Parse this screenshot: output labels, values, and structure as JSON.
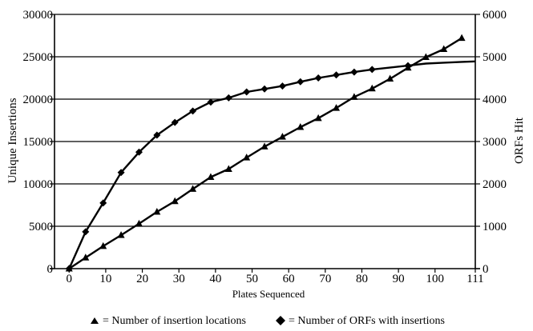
{
  "chart_data": {
    "type": "line",
    "xlabel": "Plates Sequenced",
    "ylabel_left": "Unique Insertions",
    "ylabel_right": "ORFs Hit",
    "xlim": [
      -4,
      111
    ],
    "ylim_left": [
      0,
      30000
    ],
    "ylim_right": [
      0,
      6000
    ],
    "x_ticks": [
      0,
      10,
      20,
      30,
      40,
      50,
      60,
      70,
      80,
      90,
      100,
      111
    ],
    "x_tick_labels": [
      "0",
      "10",
      "20",
      "30",
      "40",
      "50",
      "60",
      "70",
      "80",
      "90",
      "100",
      "111"
    ],
    "y_left_ticks": [
      0,
      5000,
      10000,
      15000,
      20000,
      25000,
      30000
    ],
    "y_left_tick_labels": [
      "0",
      "5000",
      "10000",
      "15000",
      "20000",
      "25000",
      "30000"
    ],
    "y_right_ticks": [
      0,
      1000,
      2000,
      3000,
      4000,
      5000,
      6000
    ],
    "y_right_tick_labels": [
      "0",
      "1000",
      "2000",
      "3000",
      "4000",
      "5000",
      "6000"
    ],
    "grid": "horizontal",
    "legend_position": "bottom",
    "series": [
      {
        "name": "= Number of insertion locations",
        "axis": "left",
        "marker": "triangle",
        "x": [
          0,
          4.5,
          9.3,
          14.2,
          19.1,
          24,
          28.9,
          33.8,
          38.7,
          43.6,
          48.5,
          53.4,
          58.3,
          63.2,
          68.1,
          73,
          77.9,
          82.8,
          87.7,
          92.6,
          97.5,
          102.4,
          107.3
        ],
        "y": [
          0,
          1300,
          2650,
          3950,
          5300,
          6700,
          7950,
          9400,
          10800,
          11750,
          13100,
          14400,
          15550,
          16700,
          17750,
          18950,
          20250,
          21250,
          22400,
          23700,
          24950,
          25900,
          27200
        ]
      },
      {
        "name": "= Number of ORFs with insertions",
        "axis": "right",
        "marker": "diamond",
        "x": [
          0,
          4.5,
          9.3,
          14.2,
          19.1,
          24,
          28.9,
          33.8,
          38.7,
          43.6,
          48.5,
          53.4,
          58.3,
          63.2,
          68.1,
          73,
          77.9,
          82.8,
          92.6
        ],
        "y": [
          0,
          870,
          1550,
          2270,
          2750,
          3150,
          3450,
          3720,
          3930,
          4030,
          4170,
          4240,
          4310,
          4410,
          4500,
          4570,
          4640,
          4700,
          4790
        ]
      }
    ],
    "line_tail_right": {
      "x": [
        92.6,
        97.5,
        102.4,
        107.3,
        111
      ],
      "y": [
        4790,
        4840,
        4860,
        4880,
        4890
      ]
    }
  }
}
